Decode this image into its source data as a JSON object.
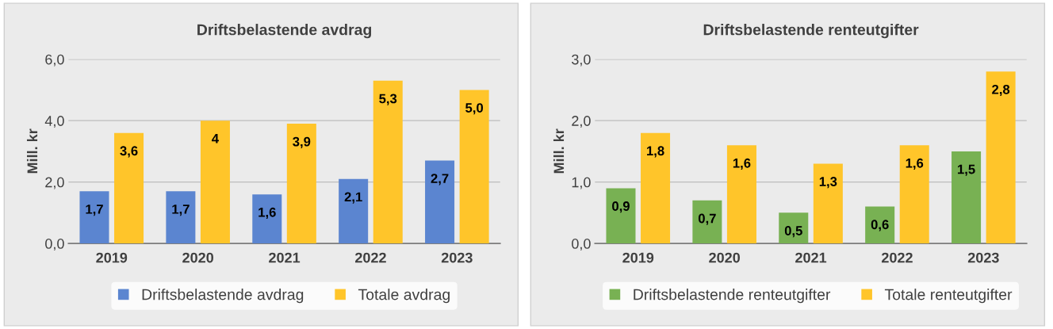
{
  "chart_data": [
    {
      "type": "bar",
      "title": "Driftsbelastende avdrag",
      "ylabel": "Mill. kr",
      "categories": [
        "2019",
        "2020",
        "2021",
        "2022",
        "2023"
      ],
      "series": [
        {
          "name": "Driftsbelastende avdrag",
          "color": "#5b85d0",
          "values": [
            1.7,
            1.7,
            1.6,
            2.1,
            2.7
          ],
          "value_labels": [
            "1,7",
            "1,7",
            "1,6",
            "2,1",
            "2,7"
          ]
        },
        {
          "name": "Totale avdrag",
          "color": "#ffc52a",
          "values": [
            3.6,
            4,
            3.9,
            5.3,
            5.0
          ],
          "value_labels": [
            "3,6",
            "4",
            "3,9",
            "5,3",
            "5,0"
          ]
        }
      ],
      "ylim": [
        0,
        6
      ],
      "yticks": [
        {
          "value": 0,
          "label": "0,0"
        },
        {
          "value": 2,
          "label": "2,0"
        },
        {
          "value": 4,
          "label": "4,0"
        },
        {
          "value": 6,
          "label": "6,0"
        }
      ],
      "grid": "y",
      "legend": "bottom"
    },
    {
      "type": "bar",
      "title": "Driftsbelastende renteutgifter",
      "ylabel": "Mill. kr",
      "categories": [
        "2019",
        "2020",
        "2021",
        "2022",
        "2023"
      ],
      "series": [
        {
          "name": "Driftsbelastende renteutgifter",
          "color": "#78b153",
          "values": [
            0.9,
            0.7,
            0.5,
            0.6,
            1.5
          ],
          "value_labels": [
            "0,9",
            "0,7",
            "0,5",
            "0,6",
            "1,5"
          ]
        },
        {
          "name": "Totale renteutgifter",
          "color": "#ffc52a",
          "values": [
            1.8,
            1.6,
            1.3,
            1.6,
            2.8
          ],
          "value_labels": [
            "1,8",
            "1,6",
            "1,3",
            "1,6",
            "2,8"
          ]
        }
      ],
      "ylim": [
        0,
        3
      ],
      "yticks": [
        {
          "value": 0,
          "label": "0,0"
        },
        {
          "value": 1,
          "label": "1,0"
        },
        {
          "value": 2,
          "label": "2,0"
        },
        {
          "value": 3,
          "label": "3,0"
        }
      ],
      "grid": "y",
      "legend": "bottom"
    }
  ]
}
